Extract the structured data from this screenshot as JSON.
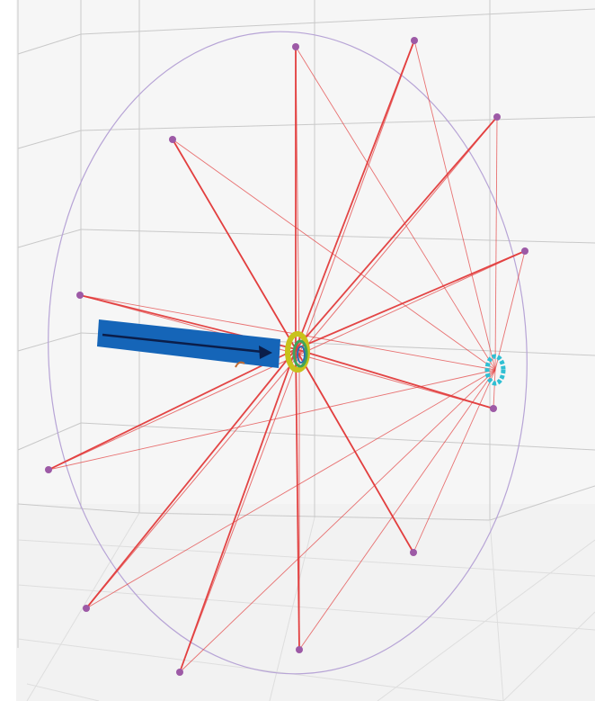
{
  "colors": {
    "background": "#ffffff",
    "backwall": "#f4f4f4",
    "grid": "#c9c9c9",
    "rim": "#b7a4d6",
    "node": "#9d5aa6",
    "spoke": "#e23b3b",
    "arrow_body": "#1565b8",
    "arrow_line": "#0b1e4a",
    "hub_front": "#c8c21a",
    "hub_back": "#2fbfd3"
  },
  "icons": {
    "arrow": "force-arrow-icon",
    "hub_front": "front-hub-ring-icon",
    "hub_back": "rear-hub-ring-icon"
  },
  "scene": {
    "type": "3d-spoked-wheel",
    "rim_node_count": 15,
    "spoke_count": 30,
    "has_axis_labels": false
  }
}
